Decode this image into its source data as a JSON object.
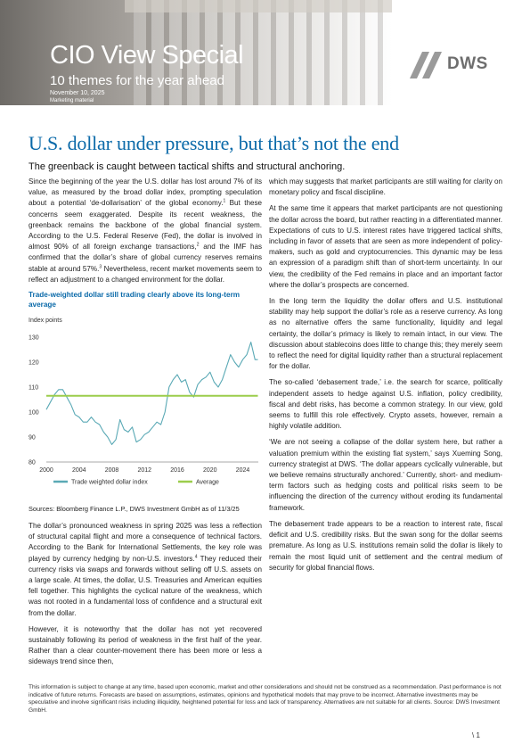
{
  "header": {
    "title": "CIO View Special",
    "subtitle": "10 themes for the year ahead",
    "date": "November 10, 2025",
    "marketing": "Marketing material",
    "logo_text": "DWS"
  },
  "article": {
    "headline": "U.S. dollar under pressure, but that’s not the end",
    "lede": "The greenback is caught between tactical shifts and structural anchoring.",
    "left_paragraphs": [
      "Since the beginning of the year the U.S. dollar has lost around 7% of its value, as measured by the broad dollar index, prompting speculation about a potential ‘de-dollarisation’ of the global economy.",
      "But these concerns seem exaggerated. Despite its recent weakness, the greenback remains the backbone of the global financial system. According to the U.S. Federal Reserve (Fed), the dollar is involved in almost 90% of all foreign exchange transactions,",
      "and the IMF has confirmed that the dollar’s share of global currency reserves remains stable at around 57%.",
      "Nevertheless, recent market movements seem to reflect an adjustment to a changed environment for the dollar."
    ],
    "footnote_marks": [
      "1",
      "2",
      "3",
      "4"
    ],
    "left_paragraphs_after": [
      "The dollar’s pronounced weakness in spring 2025 was less a reflection of structural capital flight and more a consequence of technical factors. According to the Bank for International Settlements, the key role was played by currency hedging by non-U.S. investors.",
      "They reduced their currency risks via swaps and forwards without selling off U.S. assets on a large scale. At times, the dollar, U.S. Treasuries and American equities fell together. This highlights the cyclical nature of the weakness, which was not rooted in a fundamental loss of confidence and a structural exit from the dollar.",
      "However, it is noteworthy that the dollar has not yet recovered sustainably following its period of weakness in the first half of the year. Rather than a clear counter-movement there has been more or less a sideways trend since then,"
    ],
    "right_paragraphs": [
      "which may suggests that market participants are still waiting for clarity on monetary policy and fiscal discipline.",
      "At the same time it appears that market participants are not questioning the dollar across the board, but rather reacting in a differentiated manner. Expectations of cuts to U.S. interest rates have triggered tactical shifts, including in favor of assets that are seen as more independent of policy-makers, such as gold and cryptocurrencies. This dynamic may be less an expression of a paradigm shift than of short-term uncertainty. In our view, the credibility of the Fed remains in place and an important factor where the dollar’s prospects are concerned.",
      "In the long term the liquidity the dollar offers and U.S. institutional stability may help support the dollar’s role as a reserve currency. As long as no alternative offers the same functionality, liquidity and legal certainty, the dollar’s primacy is likely to remain intact, in our view. The discussion about stablecoins does little to change this; they merely seem to reflect the need for digital liquidity rather than a structural replacement for the dollar.",
      "The so-called ‘debasement trade,’ i.e. the search for scarce, politically independent assets to hedge against U.S. inflation, policy credibility, fiscal and debt risks, has become a common strategy. In our view, gold seems to fulfill this role effectively. Crypto assets, however, remain a highly volatile addition.",
      "‘We are not seeing a collapse of the dollar system here, but rather a valuation premium within the existing fiat system,’ says Xueming Song, currency strategist at DWS. ‘The dollar appears cyclically vulnerable, but we believe remains structurally anchored.’ Currently, short- and medium-term factors such as hedging costs and political risks seem to be influencing the direction of the currency without eroding its fundamental framework.",
      "The debasement trade appears to be a reaction to interest rate, fiscal deficit and U.S. credibility risks. But the swan song for the dollar seems premature. As long as U.S. institutions remain solid the dollar is likely to remain the most liquid unit of settlement and the central medium of security for global financial flows."
    ]
  },
  "chart": {
    "title": "Trade-weighted dollar still trading clearly above its long-term average",
    "ylabel": "Index points",
    "sources": "Sources: Bloomberg Finance L.P., DWS Investment GmbH as of 11/3/25"
  },
  "chart_data": {
    "type": "line",
    "title": "Trade-weighted dollar still trading clearly above its long-term average",
    "ylabel": "Index points",
    "xlabel": "",
    "xlim": [
      2000,
      2025.9
    ],
    "ylim": [
      80,
      130
    ],
    "x_ticks": [
      "2000",
      "2004",
      "2008",
      "2012",
      "2016",
      "2020",
      "2024"
    ],
    "y_ticks": [
      "80",
      "90",
      "100",
      "110",
      "120",
      "130"
    ],
    "grid": false,
    "legend_position": "bottom",
    "series": [
      {
        "name": "Trade weighted dollar index",
        "color": "#5aa9b5",
        "x": [
          2000,
          2000.5,
          2001,
          2001.5,
          2002,
          2002.5,
          2003,
          2003.5,
          2004,
          2004.5,
          2005,
          2005.5,
          2006,
          2006.5,
          2007,
          2007.5,
          2008,
          2008.5,
          2009,
          2009.5,
          2010,
          2010.5,
          2011,
          2011.5,
          2012,
          2012.5,
          2013,
          2013.5,
          2014,
          2014.5,
          2015,
          2015.5,
          2016,
          2016.5,
          2017,
          2017.5,
          2018,
          2018.5,
          2019,
          2019.5,
          2020,
          2020.5,
          2021,
          2021.5,
          2022,
          2022.5,
          2023,
          2023.5,
          2024,
          2024.5,
          2025,
          2025.5,
          2025.85
        ],
        "values": [
          101,
          104,
          107,
          109,
          109,
          106,
          103,
          99,
          98,
          96,
          96,
          98,
          96,
          95,
          92,
          90,
          87,
          89,
          97,
          93,
          92,
          94,
          88,
          89,
          91,
          92,
          94,
          96,
          95,
          100,
          110,
          113,
          115,
          112,
          113,
          108,
          106,
          111,
          113,
          114,
          116,
          112,
          110,
          113,
          118,
          123,
          120,
          118,
          121,
          123,
          128,
          121,
          121
        ]
      },
      {
        "name": "Average",
        "color": "#9bcd4b",
        "x": [
          2000,
          2025.85
        ],
        "values": [
          106.5,
          106.5
        ]
      }
    ]
  },
  "footer": {
    "disclaimer": "This information is subject to change at any time, based upon economic, market and other considerations and should not be construed as a recommendation. Past performance is not indicative of future returns. Forecasts are based on assumptions, estimates, opinions and hypothetical models that may prove to be incorrect. Alternative investments may be speculative and involve significant risks including illiquidity, heightened potential for loss and lack of transparency. Alternatives are not suitable for all clients. Source: DWS Investment GmbH.",
    "page_number": "\\ 1"
  }
}
